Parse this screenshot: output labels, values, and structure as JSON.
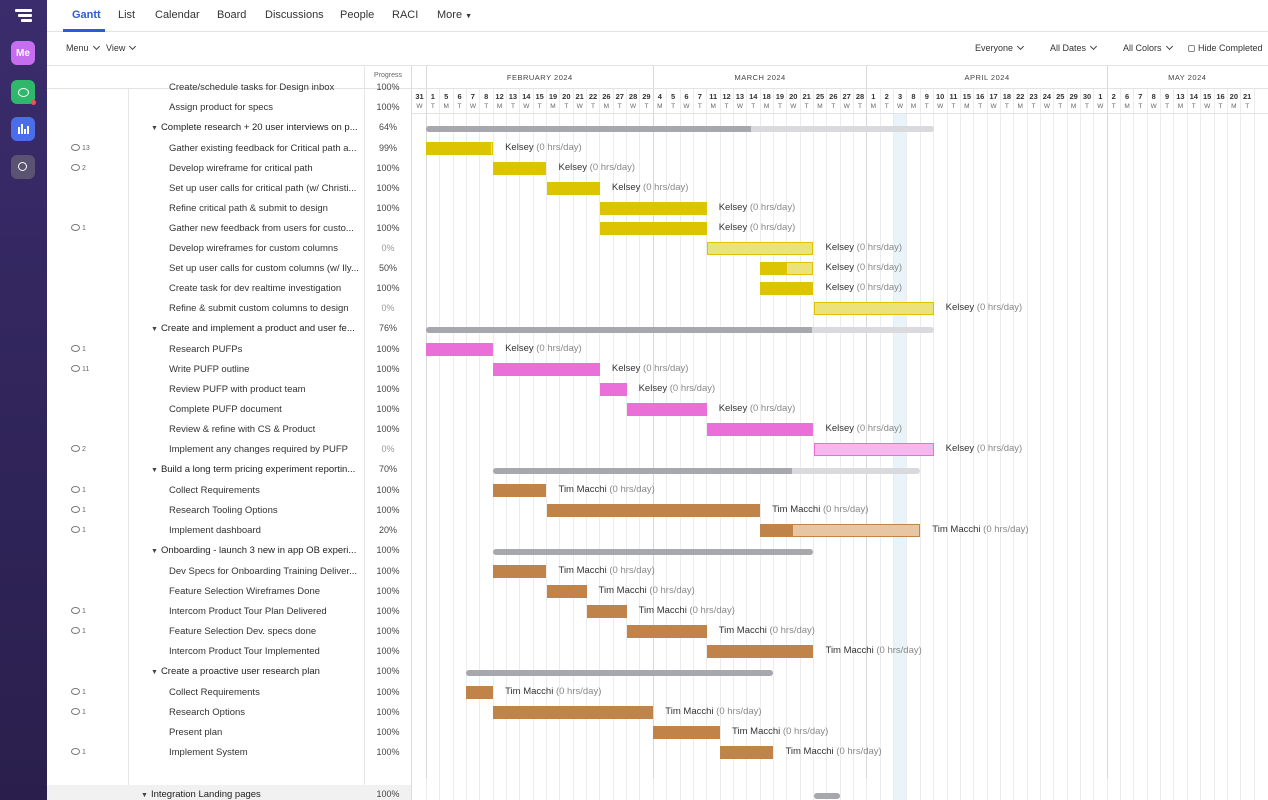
{
  "rail": {
    "me_label": "Me"
  },
  "tabs": [
    "Gantt",
    "List",
    "Calendar",
    "Board",
    "Discussions",
    "People",
    "RACI",
    "More"
  ],
  "toolbar": {
    "menu": "Menu",
    "view": "View",
    "everyone": "Everyone",
    "all_dates": "All Dates",
    "all_colors": "All Colors",
    "hide_completed": "Hide Completed"
  },
  "progress_header": "Progress",
  "months": [
    "FEBRUARY 2024",
    "MARCH 2024",
    "APRIL 2024",
    "MAY 2024"
  ],
  "days": [
    {
      "n": "31",
      "l": "W"
    },
    {
      "n": "1",
      "l": "T"
    },
    {
      "n": "5",
      "l": "M"
    },
    {
      "n": "6",
      "l": "T"
    },
    {
      "n": "7",
      "l": "W"
    },
    {
      "n": "8",
      "l": "T"
    },
    {
      "n": "12",
      "l": "M"
    },
    {
      "n": "13",
      "l": "T"
    },
    {
      "n": "14",
      "l": "W"
    },
    {
      "n": "15",
      "l": "T"
    },
    {
      "n": "19",
      "l": "M"
    },
    {
      "n": "20",
      "l": "T"
    },
    {
      "n": "21",
      "l": "W"
    },
    {
      "n": "22",
      "l": "T"
    },
    {
      "n": "26",
      "l": "M"
    },
    {
      "n": "27",
      "l": "T"
    },
    {
      "n": "28",
      "l": "W"
    },
    {
      "n": "29",
      "l": "T"
    },
    {
      "n": "4",
      "l": "M"
    },
    {
      "n": "5",
      "l": "T"
    },
    {
      "n": "6",
      "l": "W"
    },
    {
      "n": "7",
      "l": "T"
    },
    {
      "n": "11",
      "l": "M"
    },
    {
      "n": "12",
      "l": "T"
    },
    {
      "n": "13",
      "l": "W"
    },
    {
      "n": "14",
      "l": "T"
    },
    {
      "n": "18",
      "l": "M"
    },
    {
      "n": "19",
      "l": "T"
    },
    {
      "n": "20",
      "l": "W"
    },
    {
      "n": "21",
      "l": "T"
    },
    {
      "n": "25",
      "l": "M"
    },
    {
      "n": "26",
      "l": "T"
    },
    {
      "n": "27",
      "l": "W"
    },
    {
      "n": "28",
      "l": "T"
    },
    {
      "n": "1",
      "l": "M"
    },
    {
      "n": "2",
      "l": "T"
    },
    {
      "n": "3",
      "l": "W"
    },
    {
      "n": "8",
      "l": "M"
    },
    {
      "n": "9",
      "l": "T"
    },
    {
      "n": "10",
      "l": "W"
    },
    {
      "n": "11",
      "l": "T"
    },
    {
      "n": "15",
      "l": "M"
    },
    {
      "n": "16",
      "l": "T"
    },
    {
      "n": "17",
      "l": "W"
    },
    {
      "n": "18",
      "l": "T"
    },
    {
      "n": "22",
      "l": "M"
    },
    {
      "n": "23",
      "l": "T"
    },
    {
      "n": "24",
      "l": "W"
    },
    {
      "n": "25",
      "l": "T"
    },
    {
      "n": "29",
      "l": "M"
    },
    {
      "n": "30",
      "l": "T"
    },
    {
      "n": "1",
      "l": "W"
    },
    {
      "n": "2",
      "l": "T"
    },
    {
      "n": "6",
      "l": "M"
    },
    {
      "n": "7",
      "l": "T"
    },
    {
      "n": "8",
      "l": "W"
    },
    {
      "n": "9",
      "l": "T"
    },
    {
      "n": "13",
      "l": "M"
    },
    {
      "n": "14",
      "l": "T"
    },
    {
      "n": "15",
      "l": "W"
    },
    {
      "n": "16",
      "l": "T"
    },
    {
      "n": "20",
      "l": "M"
    },
    {
      "n": "21",
      "l": "T"
    }
  ],
  "colors": {
    "yellow": "#dcc400",
    "yellow_light": "#ece27a",
    "pink": "#ea6fd8",
    "pink_light": "#f6b6ee",
    "brown": "#c0834a",
    "brown_light": "#e8c6a4"
  },
  "rows": [
    {
      "type": "task",
      "name": "Create/schedule tasks for Design inbox",
      "progress": "100%",
      "comments": ""
    },
    {
      "type": "task",
      "name": "Assign product for specs",
      "progress": "100%",
      "comments": ""
    },
    {
      "type": "group",
      "name": "Complete research + 20 user interviews on p...",
      "progress": "64%"
    },
    {
      "type": "task",
      "name": "Gather existing feedback for Critical path a...",
      "progress": "99%",
      "comments": "13",
      "bar": {
        "color": "yellow",
        "start": 1,
        "end": 5,
        "fill": 0.99
      },
      "who": "Kelsey",
      "hrs": "(0 hrs/day)"
    },
    {
      "type": "task",
      "name": "Develop wireframe for critical path",
      "progress": "100%",
      "comments": "2",
      "bar": {
        "color": "yellow",
        "start": 6,
        "end": 9,
        "fill": 1
      },
      "who": "Kelsey",
      "hrs": "(0 hrs/day)"
    },
    {
      "type": "task",
      "name": "Set up user calls for critical path (w/ Christi...",
      "progress": "100%",
      "comments": "",
      "bar": {
        "color": "yellow",
        "start": 10,
        "end": 13,
        "fill": 1
      },
      "who": "Kelsey",
      "hrs": "(0 hrs/day)"
    },
    {
      "type": "task",
      "name": "Refine critical path & submit to design",
      "progress": "100%",
      "comments": "",
      "bar": {
        "color": "yellow",
        "start": 14,
        "end": 21,
        "fill": 1
      },
      "who": "Kelsey",
      "hrs": "(0 hrs/day)"
    },
    {
      "type": "task",
      "name": "Gather new feedback from users for custo...",
      "progress": "100%",
      "comments": "1",
      "bar": {
        "color": "yellow",
        "start": 14,
        "end": 21,
        "fill": 1
      },
      "who": "Kelsey",
      "hrs": "(0 hrs/day)"
    },
    {
      "type": "task",
      "name": "Develop wireframes for custom columns",
      "progress": "0%",
      "comments": "",
      "bar": {
        "color": "yellow",
        "start": 22,
        "end": 29,
        "fill": 0
      },
      "who": "Kelsey",
      "hrs": "(0 hrs/day)"
    },
    {
      "type": "task",
      "name": "Set up user calls for custom columns (w/ Ily...",
      "progress": "50%",
      "comments": "",
      "bar": {
        "color": "yellow",
        "start": 26,
        "end": 29,
        "fill": 0.5
      },
      "who": "Kelsey",
      "hrs": "(0 hrs/day)"
    },
    {
      "type": "task",
      "name": "Create task for dev realtime investigation",
      "progress": "100%",
      "comments": "",
      "bar": {
        "color": "yellow",
        "start": 26,
        "end": 29,
        "fill": 1
      },
      "who": "Kelsey",
      "hrs": "(0 hrs/day)"
    },
    {
      "type": "task",
      "name": "Refine & submit custom columns to design",
      "progress": "0%",
      "comments": "",
      "bar": {
        "color": "yellow",
        "start": 30,
        "end": 38,
        "fill": 0
      },
      "who": "Kelsey",
      "hrs": "(0 hrs/day)"
    },
    {
      "type": "group",
      "name": "Create and implement a product and user fe...",
      "progress": "76%"
    },
    {
      "type": "task",
      "name": "Research PUFPs",
      "progress": "100%",
      "comments": "1",
      "bar": {
        "color": "pink",
        "start": 1,
        "end": 5,
        "fill": 1
      },
      "who": "Kelsey",
      "hrs": "(0 hrs/day)"
    },
    {
      "type": "task",
      "name": "Write PUFP outline",
      "progress": "100%",
      "comments": "11",
      "bar": {
        "color": "pink",
        "start": 6,
        "end": 13,
        "fill": 1
      },
      "who": "Kelsey",
      "hrs": "(0 hrs/day)"
    },
    {
      "type": "task",
      "name": "Review PUFP with product team",
      "progress": "100%",
      "comments": "",
      "bar": {
        "color": "pink",
        "start": 14,
        "end": 15,
        "fill": 1
      },
      "who": "Kelsey",
      "hrs": "(0 hrs/day)"
    },
    {
      "type": "task",
      "name": "Complete PUFP document",
      "progress": "100%",
      "comments": "",
      "bar": {
        "color": "pink",
        "start": 16,
        "end": 21,
        "fill": 1
      },
      "who": "Kelsey",
      "hrs": "(0 hrs/day)"
    },
    {
      "type": "task",
      "name": "Review & refine with CS & Product",
      "progress": "100%",
      "comments": "",
      "bar": {
        "color": "pink",
        "start": 22,
        "end": 29,
        "fill": 1
      },
      "who": "Kelsey",
      "hrs": "(0 hrs/day)"
    },
    {
      "type": "task",
      "name": "Implement any changes required by PUFP",
      "progress": "0%",
      "comments": "2",
      "bar": {
        "color": "pink",
        "start": 30,
        "end": 38,
        "fill": 0
      },
      "who": "Kelsey",
      "hrs": "(0 hrs/day)"
    },
    {
      "type": "group",
      "name": "Build a long term pricing experiment reportin...",
      "progress": "70%"
    },
    {
      "type": "task",
      "name": "Collect Requirements",
      "progress": "100%",
      "comments": "1",
      "bar": {
        "color": "brown",
        "start": 6,
        "end": 9,
        "fill": 1
      },
      "who": "Tim Macchi",
      "hrs": "(0 hrs/day)"
    },
    {
      "type": "task",
      "name": "Research Tooling Options",
      "progress": "100%",
      "comments": "1",
      "bar": {
        "color": "brown",
        "start": 10,
        "end": 25,
        "fill": 1
      },
      "who": "Tim Macchi",
      "hrs": "(0 hrs/day)"
    },
    {
      "type": "task",
      "name": "Implement dashboard",
      "progress": "20%",
      "comments": "1",
      "bar": {
        "color": "brown",
        "start": 26,
        "end": 37,
        "fill": 0.2
      },
      "who": "Tim Macchi",
      "hrs": "(0 hrs/day)"
    },
    {
      "type": "group",
      "name": "Onboarding - launch 3 new in app OB experi...",
      "progress": "100%"
    },
    {
      "type": "task",
      "name": "Dev Specs for Onboarding Training Deliver...",
      "progress": "100%",
      "comments": "",
      "bar": {
        "color": "brown",
        "start": 6,
        "end": 9,
        "fill": 1
      },
      "who": "Tim Macchi",
      "hrs": "(0 hrs/day)"
    },
    {
      "type": "task",
      "name": "Feature Selection Wireframes Done",
      "progress": "100%",
      "comments": "",
      "bar": {
        "color": "brown",
        "start": 10,
        "end": 12,
        "fill": 1
      },
      "who": "Tim Macchi",
      "hrs": "(0 hrs/day)"
    },
    {
      "type": "task",
      "name": "Intercom Product Tour Plan Delivered",
      "progress": "100%",
      "comments": "1",
      "bar": {
        "color": "brown",
        "start": 13,
        "end": 15,
        "fill": 1
      },
      "who": "Tim Macchi",
      "hrs": "(0 hrs/day)"
    },
    {
      "type": "task",
      "name": "Feature Selection Dev. specs done",
      "progress": "100%",
      "comments": "1",
      "bar": {
        "color": "brown",
        "start": 16,
        "end": 21,
        "fill": 1
      },
      "who": "Tim Macchi",
      "hrs": "(0 hrs/day)"
    },
    {
      "type": "task",
      "name": "Intercom Product Tour Implemented",
      "progress": "100%",
      "comments": "",
      "bar": {
        "color": "brown",
        "start": 22,
        "end": 29,
        "fill": 1
      },
      "who": "Tim Macchi",
      "hrs": "(0 hrs/day)"
    },
    {
      "type": "group",
      "name": "Create a proactive user research plan",
      "progress": "100%"
    },
    {
      "type": "task",
      "name": "Collect Requirements",
      "progress": "100%",
      "comments": "1",
      "bar": {
        "color": "brown",
        "start": 4,
        "end": 5,
        "fill": 1
      },
      "who": "Tim Macchi",
      "hrs": "(0 hrs/day)"
    },
    {
      "type": "task",
      "name": "Research Options",
      "progress": "100%",
      "comments": "1",
      "bar": {
        "color": "brown",
        "start": 6,
        "end": 17,
        "fill": 1
      },
      "who": "Tim Macchi",
      "hrs": "(0 hrs/day)"
    },
    {
      "type": "task",
      "name": "Present plan",
      "progress": "100%",
      "comments": "",
      "bar": {
        "color": "brown",
        "start": 18,
        "end": 22,
        "fill": 1
      },
      "who": "Tim Macchi",
      "hrs": "(0 hrs/day)"
    },
    {
      "type": "task",
      "name": "Implement System",
      "progress": "100%",
      "comments": "1",
      "bar": {
        "color": "brown",
        "start": 23,
        "end": 26,
        "fill": 1
      },
      "who": "Tim Macchi",
      "hrs": "(0 hrs/day)"
    },
    {
      "type": "spacer"
    },
    {
      "type": "group",
      "name": "Integration Landing pages",
      "progress": "100%"
    }
  ],
  "summaries": [
    {
      "row": 2,
      "start": 1,
      "end": 38,
      "fill": 0.64
    },
    {
      "row": 12,
      "start": 1,
      "end": 38,
      "fill": 0.76
    },
    {
      "row": 19,
      "start": 6,
      "end": 37,
      "fill": 0.7
    },
    {
      "row": 23,
      "start": 6,
      "end": 29,
      "fill": 1
    },
    {
      "row": 29,
      "start": 4,
      "end": 26,
      "fill": 1
    },
    {
      "row": 35,
      "start": 30,
      "end": 31,
      "fill": 1
    }
  ]
}
